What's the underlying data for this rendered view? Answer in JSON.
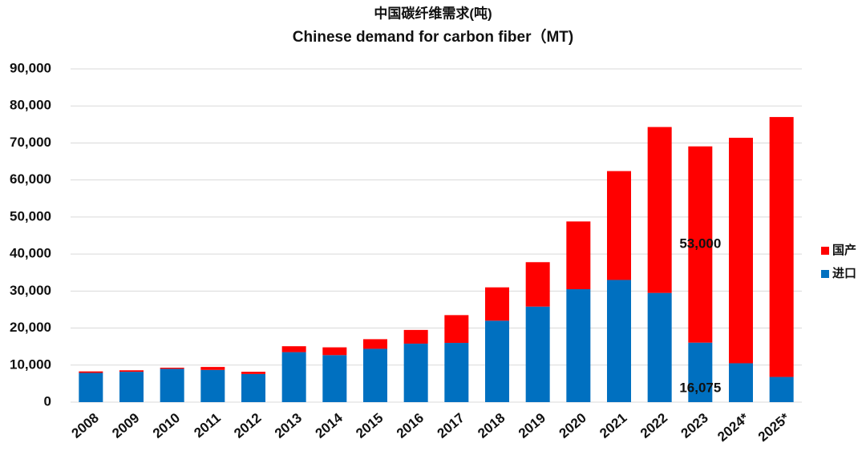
{
  "chart_data": {
    "type": "stacked-bar",
    "title": "中国碳纤维需求(吨)",
    "subtitle": "Chinese demand for carbon fiber（MT)",
    "categories": [
      "2008",
      "2009",
      "2010",
      "2011",
      "2012",
      "2013",
      "2014",
      "2015",
      "2016",
      "2017",
      "2018",
      "2019",
      "2020",
      "2021",
      "2022",
      "2023",
      "2024*",
      "2025*"
    ],
    "series": [
      {
        "name": "进口",
        "color": "#0070c0",
        "values": [
          7900,
          8200,
          9000,
          8700,
          7600,
          13500,
          12700,
          14400,
          15800,
          16000,
          22000,
          25800,
          30500,
          33000,
          29500,
          16075,
          10500,
          6800
        ],
        "value_labels": [
          null,
          null,
          null,
          null,
          null,
          null,
          null,
          null,
          null,
          null,
          null,
          null,
          null,
          null,
          null,
          "16,075",
          null,
          null
        ]
      },
      {
        "name": "国产",
        "color": "#ff0000",
        "values": [
          400,
          400,
          300,
          800,
          600,
          1600,
          2100,
          2600,
          3700,
          7500,
          9000,
          12000,
          18300,
          29400,
          44800,
          53000,
          60900,
          70200
        ],
        "value_labels": [
          null,
          null,
          null,
          null,
          null,
          null,
          null,
          null,
          null,
          null,
          null,
          null,
          null,
          null,
          null,
          "53,000",
          null,
          null
        ]
      }
    ],
    "ylim": [
      0,
      90000
    ],
    "yticks": [
      0,
      {
        "value": 10000,
        "label": "10,000"
      },
      {
        "value": 20000,
        "label": "20,000"
      },
      {
        "value": 30000,
        "label": "30,000"
      },
      {
        "value": 40000,
        "label": "40,000"
      },
      {
        "value": 50000,
        "label": "50,000"
      },
      {
        "value": 60000,
        "label": "60,000"
      },
      {
        "value": 70000,
        "label": "70,000"
      },
      {
        "value": 80000,
        "label": "80,000"
      },
      {
        "value": 90000,
        "label": "90,000"
      }
    ],
    "grid": true,
    "legend": "right"
  }
}
